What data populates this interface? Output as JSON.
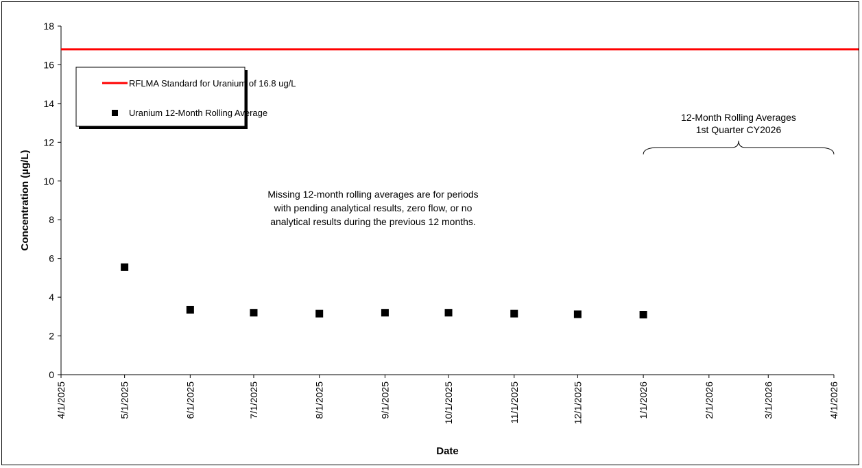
{
  "chart_data": {
    "type": "scatter",
    "title": "",
    "xlabel": "Date",
    "ylabel": "Concentration (µg/L)",
    "x_ticks": [
      "4/1/2025",
      "5/1/2025",
      "6/1/2025",
      "7/1/2025",
      "8/1/2025",
      "9/1/2025",
      "10/1/2025",
      "11/1/2025",
      "12/1/2025",
      "1/1/2026",
      "2/1/2026",
      "3/1/2026",
      "4/1/2026"
    ],
    "xlim": [
      "4/1/2025",
      "4/1/2026"
    ],
    "ylim": [
      0,
      18
    ],
    "y_ticks": [
      0,
      2,
      4,
      6,
      8,
      10,
      12,
      14,
      16,
      18
    ],
    "grid": false,
    "legend_position": "top-left",
    "series": [
      {
        "name": "Uranium 12-Month Rolling Average",
        "marker": "square",
        "color": "#000000",
        "points": [
          {
            "x": "5/1/2025",
            "y": 5.55
          },
          {
            "x": "6/1/2025",
            "y": 3.35
          },
          {
            "x": "7/1/2025",
            "y": 3.2
          },
          {
            "x": "8/1/2025",
            "y": 3.15
          },
          {
            "x": "9/1/2025",
            "y": 3.2
          },
          {
            "x": "10/1/2025",
            "y": 3.2
          },
          {
            "x": "11/1/2025",
            "y": 3.15
          },
          {
            "x": "12/1/2025",
            "y": 3.12
          },
          {
            "x": "1/1/2026",
            "y": 3.1
          }
        ]
      }
    ],
    "reference_line": {
      "name": "RFLMA Standard for Uranium of 16.8 ug/L",
      "y": 16.8,
      "color": "#ff0000"
    },
    "annotations": {
      "note_lines": [
        "Missing 12-month rolling averages are for periods",
        "with pending analytical results, zero flow, or no",
        "analytical results during the previous 12 months."
      ],
      "bracket_lines": [
        "12-Month Rolling Averages",
        "1st Quarter CY2026"
      ],
      "bracket_range": [
        "1/1/2026",
        "4/1/2026"
      ]
    }
  }
}
